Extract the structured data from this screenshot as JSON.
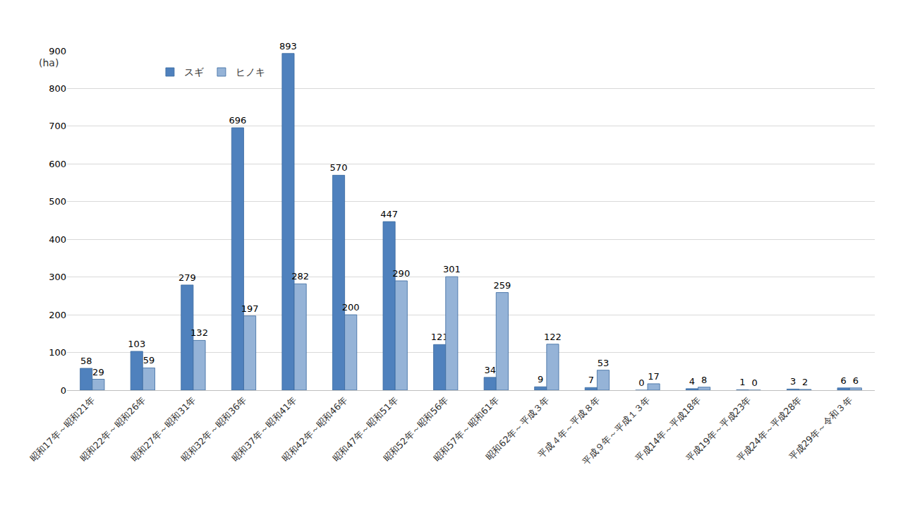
{
  "chart_data": {
    "type": "bar",
    "ylabel": "(ha)",
    "categories": [
      "昭和17年～昭和21年",
      "昭和22年～昭和26年",
      "昭和27年～昭和31年",
      "昭和32年～昭和36年",
      "昭和37年～昭和41年",
      "昭和42年～昭和46年",
      "昭和47年～昭和51年",
      "昭和52年～昭和56年",
      "昭和57年～昭和61年",
      "昭和62年～平成３年",
      "平成４年～平成８年",
      "平成９年～平成１３年",
      "平成14年～平成18年",
      "平成19年～平成23年",
      "平成24年～平成28年",
      "平成29年～令和３年"
    ],
    "series": [
      {
        "name": "スギ",
        "color": "#4f81bd",
        "values": [
          58,
          103,
          279,
          696,
          893,
          570,
          447,
          121,
          34,
          9,
          7,
          0,
          4,
          1,
          3,
          6
        ]
      },
      {
        "name": "ヒノキ",
        "color": "#95b3d7",
        "values": [
          29,
          59,
          132,
          197,
          282,
          200,
          290,
          301,
          259,
          122,
          53,
          17,
          8,
          0,
          2,
          6
        ]
      }
    ],
    "ylim": [
      0,
      900
    ],
    "yticks": [
      0,
      100,
      200,
      300,
      400,
      500,
      600,
      700,
      800,
      900
    ],
    "grid": true,
    "legend": "top-left",
    "data_labels": true
  }
}
